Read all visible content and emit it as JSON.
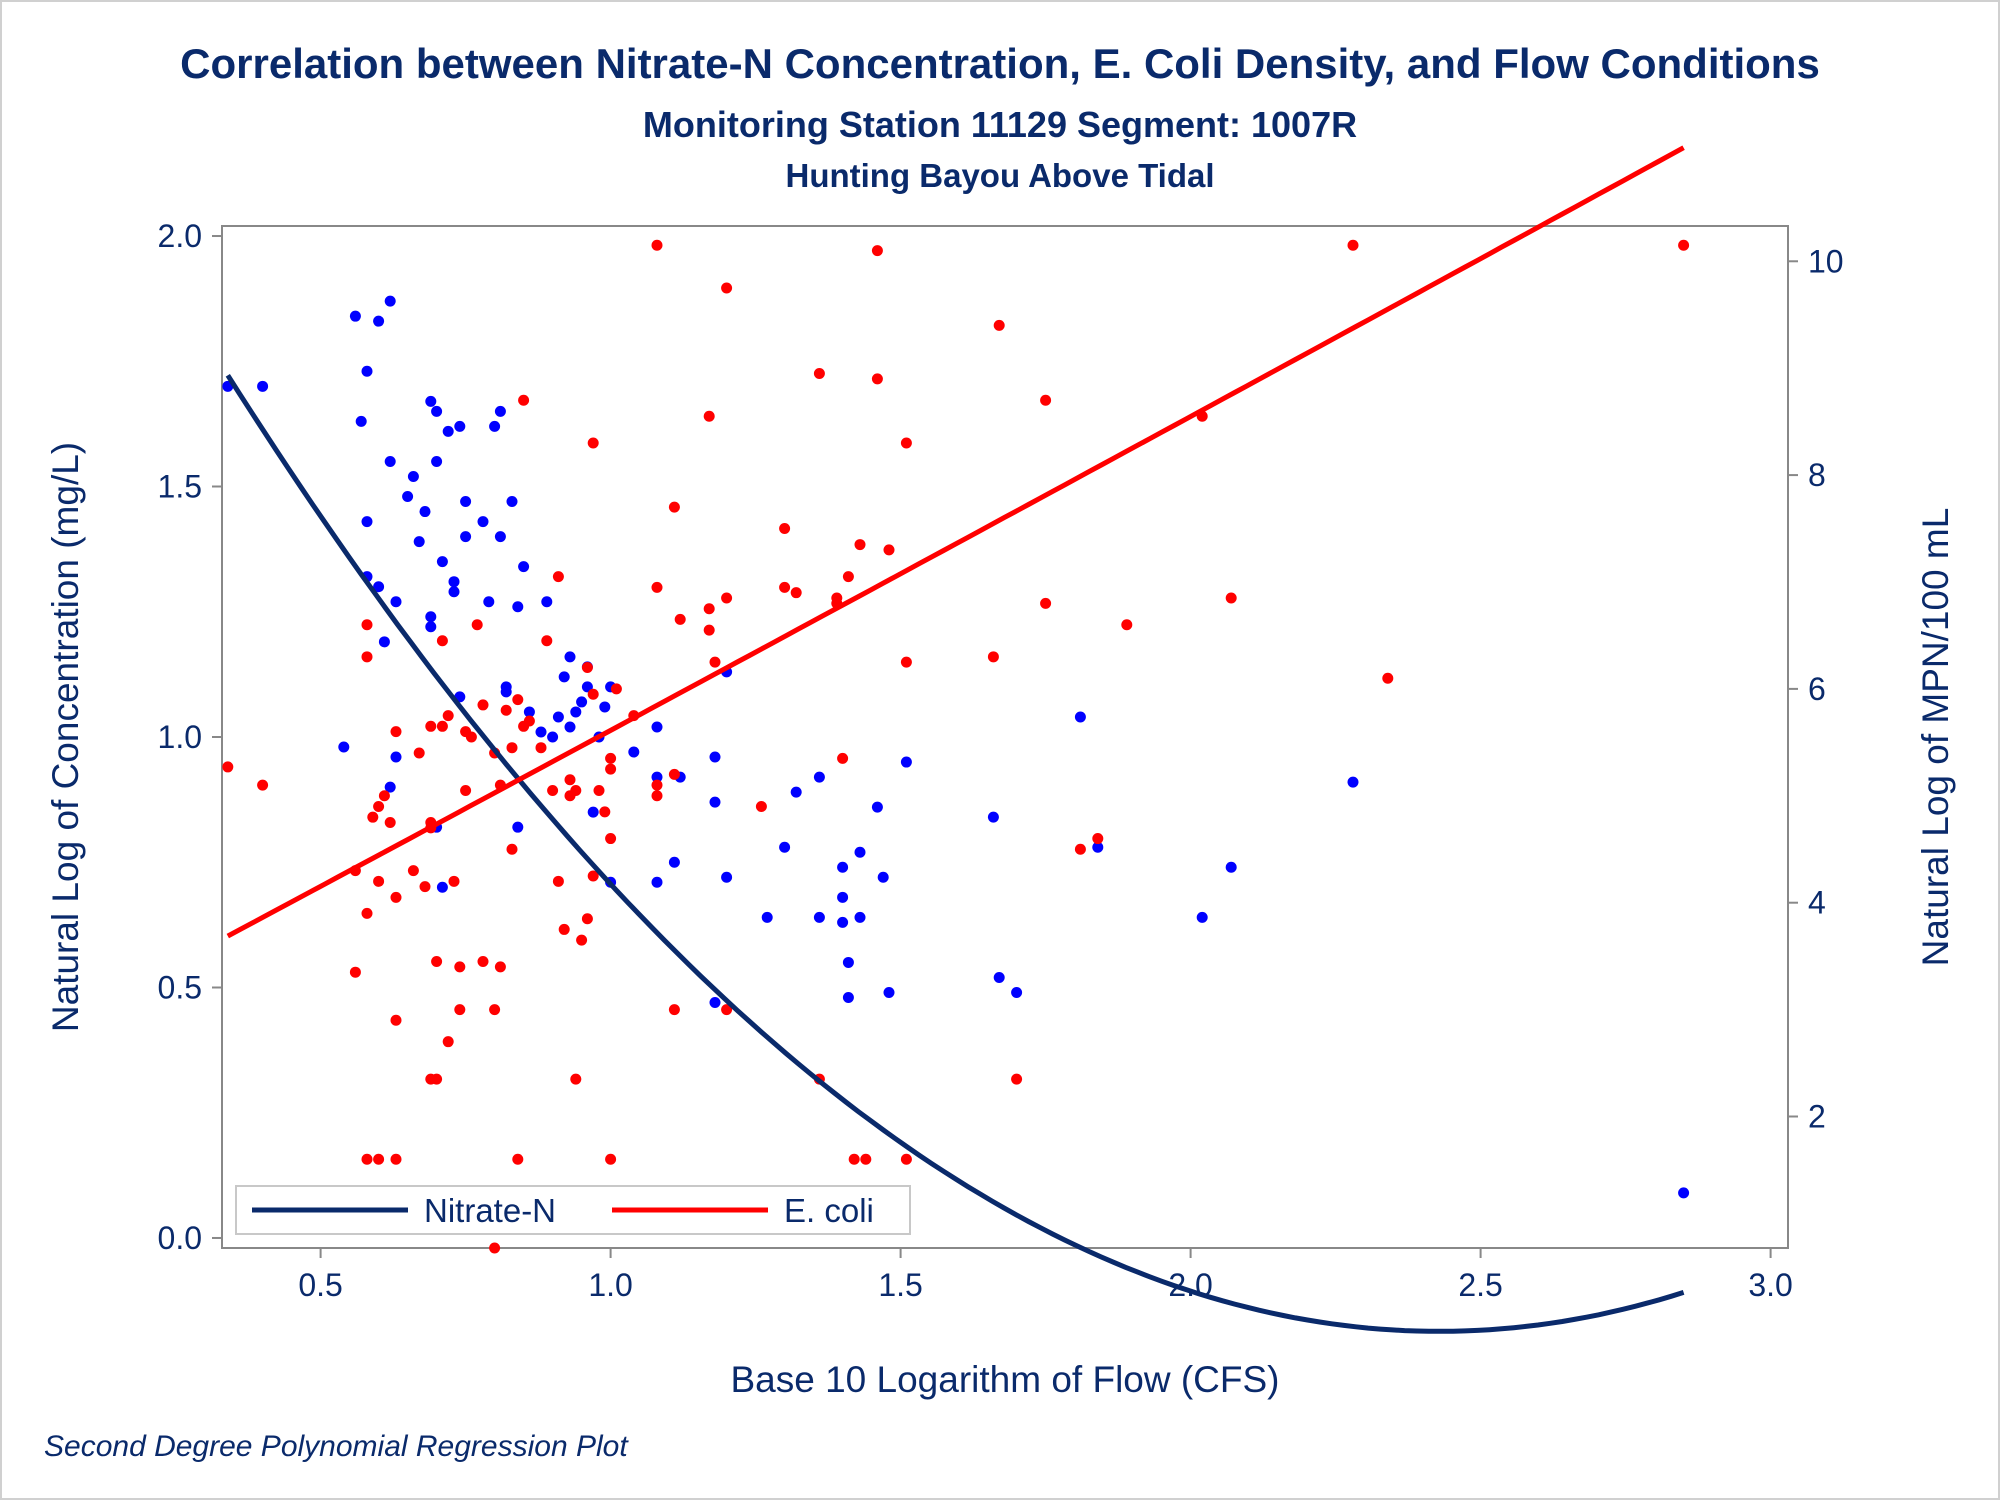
{
  "chart_data": {
    "type": "scatter",
    "title": "Correlation between Nitrate-N Concentration, E. Coli Density, and Flow Conditions",
    "subtitle": "Monitoring Station 11129 Segment: 1007R",
    "subtitle2": "Hunting Bayou Above Tidal",
    "footnote": "Second Degree Polynomial Regression Plot",
    "xlabel": "Base 10 Logarithm of Flow (CFS)",
    "ylabel_left": "Natural Log of Concentration (mg/L)",
    "ylabel_right": "Natural Log of MPN/100 mL",
    "xlim": [
      0.33,
      3.03
    ],
    "ylim_left": [
      -0.02,
      2.02
    ],
    "ylim_right": [
      0.77,
      10.33
    ],
    "x_ticks": [
      "0.5",
      "1.0",
      "1.5",
      "2.0",
      "2.5",
      "3.0"
    ],
    "y_left_ticks": [
      "0.0",
      "0.5",
      "1.0",
      "1.5",
      "2.0"
    ],
    "y_right_ticks": [
      "2",
      "4",
      "6",
      "8",
      "10"
    ],
    "legend": {
      "position": "bottom-left",
      "entries": [
        "Nitrate-N",
        "E. coli"
      ]
    },
    "colors": {
      "nitrate": "#0a2a6b",
      "nitrate_points": "#0000ff",
      "ecoli": "#ff0000",
      "text": "#0a2a6b",
      "axis": "#888888"
    },
    "series": [
      {
        "name": "Nitrate-N",
        "axis": "left",
        "points": [
          [
            0.34,
            1.7
          ],
          [
            0.4,
            1.7
          ],
          [
            0.54,
            0.98
          ],
          [
            0.56,
            1.84
          ],
          [
            0.57,
            1.63
          ],
          [
            0.58,
            1.73
          ],
          [
            0.58,
            1.43
          ],
          [
            0.58,
            1.32
          ],
          [
            0.6,
            1.83
          ],
          [
            0.6,
            1.3
          ],
          [
            0.61,
            1.19
          ],
          [
            0.62,
            1.87
          ],
          [
            0.62,
            1.55
          ],
          [
            0.62,
            0.9
          ],
          [
            0.63,
            1.27
          ],
          [
            0.63,
            0.96
          ],
          [
            0.65,
            1.48
          ],
          [
            0.66,
            1.52
          ],
          [
            0.67,
            1.39
          ],
          [
            0.68,
            1.45
          ],
          [
            0.69,
            1.67
          ],
          [
            0.7,
            1.65
          ],
          [
            0.7,
            1.55
          ],
          [
            0.69,
            1.22
          ],
          [
            0.69,
            1.24
          ],
          [
            0.7,
            0.82
          ],
          [
            0.71,
            1.35
          ],
          [
            0.71,
            0.7
          ],
          [
            0.72,
            1.61
          ],
          [
            0.73,
            1.29
          ],
          [
            0.73,
            1.31
          ],
          [
            0.74,
            1.08
          ],
          [
            0.74,
            1.62
          ],
          [
            0.75,
            1.47
          ],
          [
            0.75,
            1.4
          ],
          [
            0.78,
            1.43
          ],
          [
            0.79,
            1.27
          ],
          [
            0.8,
            1.62
          ],
          [
            0.81,
            1.65
          ],
          [
            0.81,
            1.4
          ],
          [
            0.82,
            1.1
          ],
          [
            0.82,
            1.09
          ],
          [
            0.83,
            1.47
          ],
          [
            0.84,
            1.26
          ],
          [
            0.84,
            0.82
          ],
          [
            0.85,
            1.34
          ],
          [
            0.86,
            1.05
          ],
          [
            0.88,
            1.01
          ],
          [
            0.89,
            1.27
          ],
          [
            0.9,
            1.0
          ],
          [
            0.91,
            1.04
          ],
          [
            0.92,
            1.12
          ],
          [
            0.93,
            1.16
          ],
          [
            0.93,
            1.02
          ],
          [
            0.94,
            1.05
          ],
          [
            0.95,
            1.07
          ],
          [
            0.96,
            1.14
          ],
          [
            0.97,
            0.85
          ],
          [
            0.96,
            1.1
          ],
          [
            0.98,
            1.0
          ],
          [
            0.99,
            1.06
          ],
          [
            1.0,
            1.1
          ],
          [
            1.0,
            0.71
          ],
          [
            1.04,
            0.97
          ],
          [
            1.08,
            1.02
          ],
          [
            1.08,
            0.92
          ],
          [
            1.08,
            0.71
          ],
          [
            1.11,
            0.75
          ],
          [
            1.12,
            0.92
          ],
          [
            1.18,
            0.87
          ],
          [
            1.18,
            0.96
          ],
          [
            1.18,
            0.47
          ],
          [
            1.2,
            1.13
          ],
          [
            1.2,
            0.72
          ],
          [
            1.27,
            0.64
          ],
          [
            1.3,
            0.78
          ],
          [
            1.32,
            0.89
          ],
          [
            1.36,
            0.92
          ],
          [
            1.36,
            0.64
          ],
          [
            1.4,
            0.74
          ],
          [
            1.4,
            0.68
          ],
          [
            1.4,
            0.63
          ],
          [
            1.41,
            0.55
          ],
          [
            1.41,
            0.48
          ],
          [
            1.43,
            0.77
          ],
          [
            1.43,
            0.64
          ],
          [
            1.46,
            0.86
          ],
          [
            1.47,
            0.72
          ],
          [
            1.48,
            0.49
          ],
          [
            1.51,
            0.95
          ],
          [
            1.66,
            0.84
          ],
          [
            1.67,
            0.52
          ],
          [
            1.7,
            0.49
          ],
          [
            1.81,
            1.04
          ],
          [
            1.84,
            0.78
          ],
          [
            2.02,
            0.64
          ],
          [
            2.07,
            0.74
          ],
          [
            2.28,
            0.91
          ],
          [
            2.85,
            0.09
          ]
        ],
        "fit": {
          "degree": 2,
          "coef": [
            2.394,
            -2.125,
            0.4375
          ],
          "x_range": [
            0.34,
            2.85
          ]
        }
      },
      {
        "name": "E. coli",
        "axis": "right",
        "points": [
          [
            0.34,
            5.27
          ],
          [
            0.4,
            5.1
          ],
          [
            0.56,
            4.3
          ],
          [
            0.56,
            3.35
          ],
          [
            0.58,
            1.6
          ],
          [
            0.58,
            6.3
          ],
          [
            0.58,
            6.6
          ],
          [
            0.58,
            3.9
          ],
          [
            0.59,
            4.8
          ],
          [
            0.6,
            4.9
          ],
          [
            0.6,
            4.2
          ],
          [
            0.61,
            5.0
          ],
          [
            0.6,
            1.6
          ],
          [
            0.62,
            4.75
          ],
          [
            0.63,
            4.05
          ],
          [
            0.63,
            5.6
          ],
          [
            0.63,
            1.6
          ],
          [
            0.63,
            2.9
          ],
          [
            0.66,
            4.3
          ],
          [
            0.67,
            5.4
          ],
          [
            0.68,
            4.15
          ],
          [
            0.69,
            5.65
          ],
          [
            0.69,
            4.75
          ],
          [
            0.69,
            4.7
          ],
          [
            0.7,
            3.45
          ],
          [
            0.69,
            2.35
          ],
          [
            0.7,
            2.35
          ],
          [
            0.71,
            6.45
          ],
          [
            0.71,
            5.65
          ],
          [
            0.72,
            5.75
          ],
          [
            0.72,
            2.7
          ],
          [
            0.73,
            4.2
          ],
          [
            0.74,
            3.4
          ],
          [
            0.74,
            3.0
          ],
          [
            0.75,
            5.6
          ],
          [
            0.75,
            5.05
          ],
          [
            0.76,
            5.55
          ],
          [
            0.77,
            6.6
          ],
          [
            0.78,
            5.85
          ],
          [
            0.78,
            3.45
          ],
          [
            0.8,
            5.4
          ],
          [
            0.8,
            3.0
          ],
          [
            0.81,
            5.1
          ],
          [
            0.81,
            3.4
          ],
          [
            0.8,
            0.77
          ],
          [
            0.82,
            5.8
          ],
          [
            0.83,
            4.5
          ],
          [
            0.83,
            5.45
          ],
          [
            0.84,
            5.9
          ],
          [
            0.84,
            1.6
          ],
          [
            0.85,
            8.7
          ],
          [
            0.85,
            5.65
          ],
          [
            0.86,
            5.7
          ],
          [
            0.88,
            5.45
          ],
          [
            0.89,
            6.45
          ],
          [
            0.9,
            5.05
          ],
          [
            0.91,
            7.05
          ],
          [
            0.91,
            4.2
          ],
          [
            0.92,
            3.75
          ],
          [
            0.93,
            5.15
          ],
          [
            0.93,
            5.0
          ],
          [
            0.94,
            5.05
          ],
          [
            0.94,
            2.35
          ],
          [
            0.95,
            3.65
          ],
          [
            0.96,
            3.85
          ],
          [
            0.96,
            6.2
          ],
          [
            0.97,
            5.95
          ],
          [
            0.97,
            4.25
          ],
          [
            0.97,
            8.3
          ],
          [
            0.98,
            5.05
          ],
          [
            0.99,
            4.85
          ],
          [
            1.0,
            5.35
          ],
          [
            1.0,
            5.25
          ],
          [
            1.0,
            1.6
          ],
          [
            1.0,
            4.6
          ],
          [
            1.01,
            6.0
          ],
          [
            1.04,
            5.75
          ],
          [
            1.08,
            6.95
          ],
          [
            1.08,
            5.1
          ],
          [
            1.08,
            5.0
          ],
          [
            1.08,
            10.15
          ],
          [
            1.11,
            7.7
          ],
          [
            1.11,
            5.2
          ],
          [
            1.11,
            3.0
          ],
          [
            1.12,
            6.65
          ],
          [
            1.17,
            8.55
          ],
          [
            1.17,
            6.75
          ],
          [
            1.17,
            6.55
          ],
          [
            1.18,
            6.25
          ],
          [
            1.2,
            6.85
          ],
          [
            1.2,
            9.75
          ],
          [
            1.2,
            3.0
          ],
          [
            1.26,
            4.9
          ],
          [
            1.3,
            7.5
          ],
          [
            1.3,
            6.95
          ],
          [
            1.32,
            6.9
          ],
          [
            1.36,
            8.95
          ],
          [
            1.36,
            2.35
          ],
          [
            1.39,
            6.8
          ],
          [
            1.39,
            6.85
          ],
          [
            1.4,
            5.35
          ],
          [
            1.41,
            7.05
          ],
          [
            1.42,
            1.6
          ],
          [
            1.43,
            7.35
          ],
          [
            1.44,
            1.6
          ],
          [
            1.46,
            10.1
          ],
          [
            1.46,
            8.9
          ],
          [
            1.48,
            7.3
          ],
          [
            1.51,
            8.3
          ],
          [
            1.51,
            6.25
          ],
          [
            1.51,
            1.6
          ],
          [
            1.66,
            6.3
          ],
          [
            1.67,
            9.4
          ],
          [
            1.7,
            2.35
          ],
          [
            1.75,
            8.7
          ],
          [
            1.75,
            6.8
          ],
          [
            1.81,
            4.5
          ],
          [
            1.84,
            4.6
          ],
          [
            1.89,
            6.6
          ],
          [
            2.02,
            8.55
          ],
          [
            2.07,
            6.85
          ],
          [
            2.28,
            10.15
          ],
          [
            2.34,
            6.1
          ],
          [
            2.85,
            10.15
          ]
        ],
        "fit": {
          "degree": 2,
          "coef": [
            2.7,
            2.9,
            0.012
          ],
          "x_range": [
            0.34,
            2.85
          ]
        }
      }
    ]
  }
}
